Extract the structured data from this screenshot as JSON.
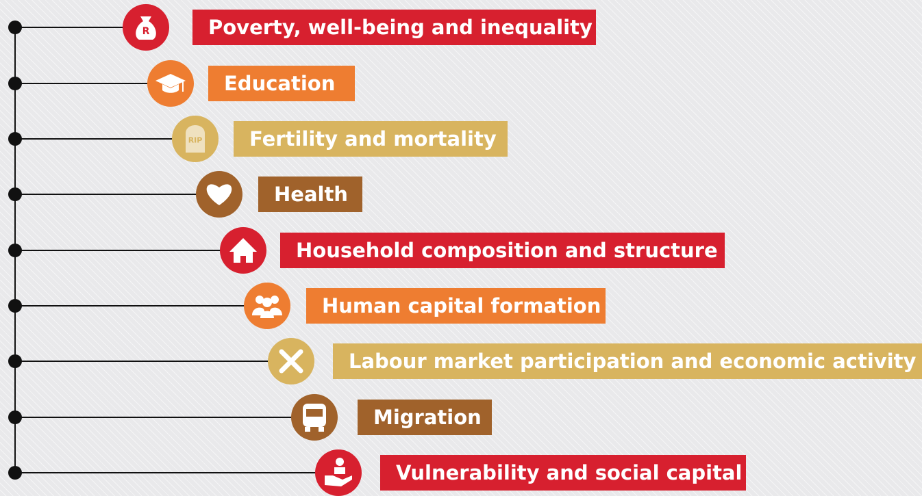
{
  "items": [
    {
      "label": "Poverty, well-being and inequality",
      "icon_text": "R",
      "color": "#d7202f"
    },
    {
      "label": "Education",
      "color": "#ee7d31"
    },
    {
      "label": "Fertility and mortality",
      "icon_text": "RIP",
      "color": "#d8b45f"
    },
    {
      "label": "Health",
      "color": "#a0622b"
    },
    {
      "label": "Household composition and structure",
      "color": "#d7202f"
    },
    {
      "label": "Human capital formation",
      "color": "#ee7d31"
    },
    {
      "label": "Labour market participation and economic activity",
      "color": "#d8b45f"
    },
    {
      "label": "Migration",
      "color": "#a0622b"
    },
    {
      "label": "Vulnerability and social capital",
      "color": "#d7202f"
    }
  ]
}
